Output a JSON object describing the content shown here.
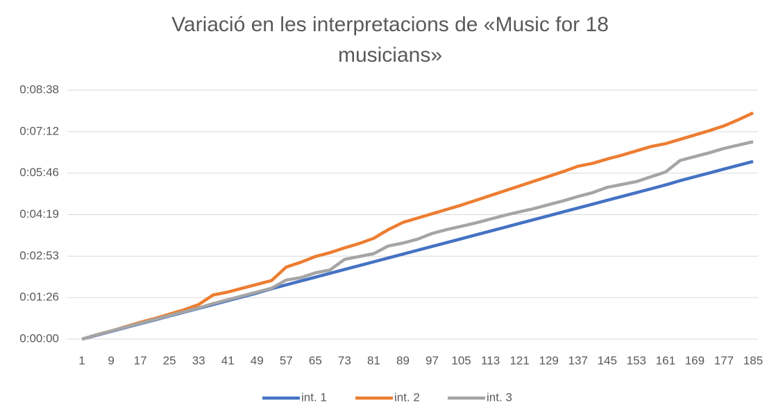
{
  "chart_data": {
    "type": "line",
    "title": "Variació en les interpretacions de «Music for 18 musicians»",
    "x": [
      1,
      5,
      9,
      13,
      17,
      21,
      25,
      29,
      33,
      37,
      41,
      45,
      49,
      53,
      57,
      61,
      65,
      69,
      73,
      77,
      81,
      85,
      89,
      93,
      97,
      101,
      105,
      109,
      113,
      117,
      121,
      125,
      129,
      133,
      137,
      141,
      145,
      149,
      153,
      157,
      161,
      165,
      169,
      173,
      177,
      181,
      185
    ],
    "xlim": [
      -3,
      189
    ],
    "xticks": [
      1,
      9,
      17,
      25,
      33,
      41,
      49,
      57,
      65,
      73,
      81,
      89,
      97,
      105,
      113,
      121,
      129,
      137,
      145,
      153,
      161,
      169,
      177,
      185
    ],
    "ylim": [
      0,
      518.4
    ],
    "yticks": [
      {
        "value": 0,
        "label": "0:00:00"
      },
      {
        "value": 86.4,
        "label": "0:01:26"
      },
      {
        "value": 172.8,
        "label": "0:02:53"
      },
      {
        "value": 259.2,
        "label": "0:04:19"
      },
      {
        "value": 345.6,
        "label": "0:05:46"
      },
      {
        "value": 432,
        "label": "0:07:12"
      },
      {
        "value": 518.4,
        "label": "0:08:38"
      }
    ],
    "grid": true,
    "legend": "bottom",
    "series": [
      {
        "name": "int. 1",
        "color": "#4472c4",
        "values": [
          0,
          8,
          16,
          24,
          32,
          40,
          48,
          56,
          64,
          72,
          80,
          88,
          96,
          105,
          113,
          121,
          129,
          137,
          145,
          153,
          161,
          169,
          177,
          185,
          193,
          201,
          209,
          217,
          225,
          233,
          241,
          249,
          257,
          265,
          273,
          281,
          289,
          297,
          305,
          313,
          321,
          330,
          338,
          346,
          354,
          362,
          370
        ]
      },
      {
        "name": "int. 2",
        "color": "#ed7d31",
        "values": [
          0,
          9,
          17,
          26,
          35,
          43,
          52,
          61,
          72,
          92,
          98,
          106,
          114,
          122,
          150,
          160,
          172,
          180,
          190,
          199,
          210,
          228,
          243,
          252,
          261,
          270,
          279,
          289,
          299,
          309,
          319,
          329,
          339,
          349,
          360,
          366,
          375,
          383,
          392,
          401,
          407,
          416,
          425,
          434,
          444,
          457,
          471
        ]
      },
      {
        "name": "int. 3",
        "color": "#a5a5a5",
        "values": [
          0,
          9,
          17,
          25,
          33,
          41,
          49,
          57,
          65,
          74,
          82,
          90,
          98,
          106,
          123,
          128,
          138,
          144,
          166,
          172,
          178,
          194,
          200,
          208,
          220,
          228,
          235,
          242,
          250,
          258,
          265,
          272,
          280,
          288,
          297,
          305,
          316,
          322,
          328,
          338,
          348,
          372,
          380,
          388,
          397,
          404,
          411
        ]
      }
    ]
  }
}
